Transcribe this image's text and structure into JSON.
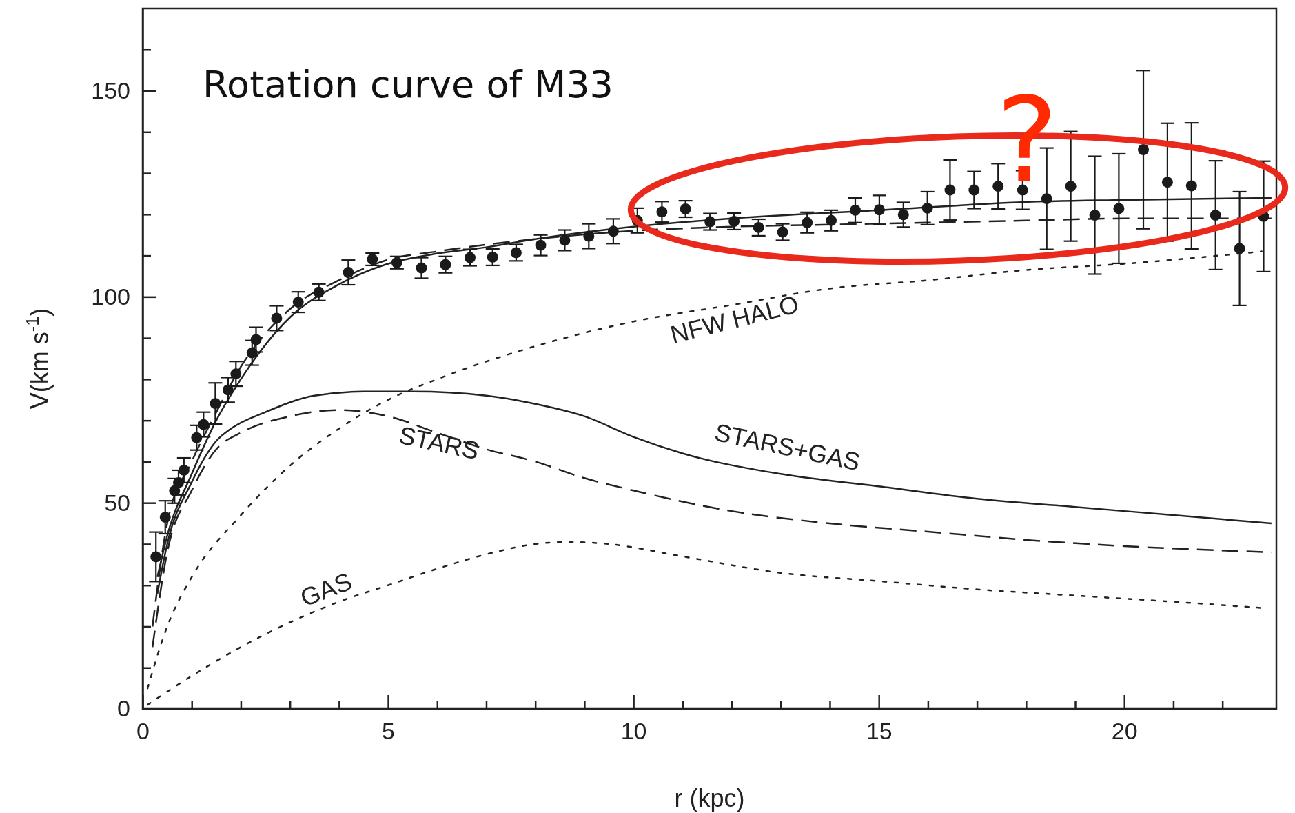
{
  "chart_data": {
    "type": "line",
    "title": "Rotation curve of M33",
    "xlabel": "r (kpc)",
    "ylabel": "V(km s$^{-1}$)",
    "xlim": [
      0,
      23.1
    ],
    "ylim": [
      0,
      170
    ],
    "xticks": [
      0,
      {
        "value": 1,
        "label": null
      },
      {
        "value": 2,
        "label": null
      },
      {
        "value": 3,
        "label": null
      },
      {
        "value": 4,
        "label": null
      },
      5,
      {
        "value": 6,
        "label": null
      },
      {
        "value": 7,
        "label": null
      },
      {
        "value": 8,
        "label": null
      },
      {
        "value": 9,
        "label": null
      },
      10,
      {
        "value": 11,
        "label": null
      },
      {
        "value": 12,
        "label": null
      },
      {
        "value": 13,
        "label": null
      },
      {
        "value": 14,
        "label": null
      },
      15,
      {
        "value": 16,
        "label": null
      },
      {
        "value": 17,
        "label": null
      },
      {
        "value": 18,
        "label": null
      },
      {
        "value": 19,
        "label": null
      },
      20,
      {
        "value": 21,
        "label": null
      },
      {
        "value": 22,
        "label": null
      }
    ],
    "yticks": [
      0,
      {
        "value": 10,
        "label": null
      },
      {
        "value": 20,
        "label": null
      },
      {
        "value": 30,
        "label": null
      },
      {
        "value": 40,
        "label": null
      },
      50,
      {
        "value": 60,
        "label": null
      },
      {
        "value": 70,
        "label": null
      },
      {
        "value": 80,
        "label": null
      },
      {
        "value": 90,
        "label": null
      },
      100,
      {
        "value": 110,
        "label": null
      },
      {
        "value": 120,
        "label": null
      },
      {
        "value": 130,
        "label": null
      },
      {
        "value": 140,
        "label": null
      },
      150,
      {
        "value": 160,
        "label": null
      }
    ],
    "annotations": [
      "?"
    ],
    "series": [
      {
        "type": "scatter",
        "marker": "circle",
        "color": "#1a1a1a",
        "x": [
          0.27,
          0.46,
          0.65,
          0.73,
          0.84,
          1.1,
          1.24,
          1.48,
          1.74,
          1.9,
          2.23,
          2.31,
          2.73,
          3.17,
          3.59,
          4.19,
          4.68,
          5.18,
          5.68,
          6.17,
          6.67,
          7.13,
          7.61,
          8.11,
          8.6,
          9.09,
          9.59,
          10.08,
          10.58,
          11.06,
          11.56,
          12.05,
          12.55,
          13.04,
          13.54,
          14.03,
          14.52,
          15.01,
          15.5,
          15.99,
          16.45,
          16.94,
          17.43,
          17.93,
          18.42,
          18.91,
          19.4,
          19.89,
          20.39,
          20.88,
          21.37,
          21.86,
          22.35,
          22.84
        ],
        "values": [
          36.9,
          46.5,
          52.9,
          54.9,
          57.9,
          65.8,
          69.0,
          74.1,
          77.4,
          81.3,
          86.4,
          89.6,
          94.8,
          98.7,
          101.1,
          105.9,
          109.1,
          108.3,
          107.0,
          107.8,
          109.5,
          109.6,
          110.7,
          112.5,
          113.7,
          114.7,
          115.9,
          118.5,
          120.6,
          121.3,
          118.2,
          118.3,
          116.8,
          115.7,
          118.0,
          118.5,
          121.0,
          121.1,
          119.9,
          121.5,
          125.9,
          125.9,
          126.8,
          125.9,
          123.8,
          126.8,
          119.8,
          121.4,
          135.7,
          127.8,
          126.9,
          119.8,
          111.7,
          119.5
        ],
        "errors": [
          6,
          4,
          3,
          3,
          3,
          3,
          3,
          5,
          3,
          3,
          3,
          3,
          3,
          2.5,
          2,
          3,
          1.5,
          1.5,
          2.5,
          2,
          2,
          2,
          2,
          2.5,
          2.5,
          3,
          3,
          3,
          2.5,
          2,
          2,
          2,
          2,
          2,
          2.5,
          2.5,
          3,
          3.5,
          3,
          4,
          7.3,
          4.5,
          5.5,
          4.7,
          12.3,
          13.3,
          14.3,
          13.3,
          19.2,
          14.3,
          15.3,
          13.2,
          13.8,
          13.4
        ]
      },
      {
        "line_style": "solid",
        "color": "#222222",
        "x": [
          0.3,
          0.5,
          1,
          1.5,
          2,
          3,
          4,
          5,
          6,
          7,
          8,
          10,
          12,
          15,
          18,
          20,
          23
        ],
        "values": [
          32,
          42,
          57,
          70,
          80,
          95,
          103,
          108,
          110.5,
          112,
          114,
          117,
          119,
          121,
          123,
          123.5,
          124
        ]
      },
      {
        "line_style": "dashed",
        "color": "#222222",
        "x": [
          0.2,
          0.5,
          1,
          1.5,
          2,
          3,
          4,
          5,
          6,
          8,
          10,
          12,
          14,
          16,
          18,
          20,
          23
        ],
        "values": [
          20,
          45,
          60,
          72,
          83,
          97,
          104,
          109,
          111,
          114,
          116,
          117,
          117.5,
          118,
          118.5,
          119,
          119
        ]
      },
      {
        "line_style": "solid",
        "color": "#222222",
        "name": "STARS+GAS",
        "x": [
          0.3,
          0.5,
          1,
          1.5,
          1.8,
          2.5,
          3.5,
          4.5,
          5.5,
          7,
          8,
          9,
          10,
          11,
          13,
          15,
          17,
          19,
          21,
          23
        ],
        "values": [
          28,
          40,
          55,
          65,
          68,
          72,
          76,
          77,
          77,
          76,
          74,
          71,
          66,
          62,
          57,
          54,
          51,
          49,
          47,
          45
        ]
      },
      {
        "line_style": "dashed",
        "color": "#222222",
        "name": "STARS",
        "x": [
          0.2,
          0.5,
          1,
          1.5,
          2,
          3,
          4,
          5,
          6,
          7,
          8,
          9,
          10,
          12,
          14,
          16,
          18,
          20,
          23
        ],
        "values": [
          15,
          38,
          53,
          63,
          67,
          71,
          72.5,
          71,
          67,
          63,
          60,
          56,
          53,
          48,
          45,
          43,
          41,
          39.5,
          38
        ]
      },
      {
        "line_style": "dotted",
        "color": "#222222",
        "name": "NFW HALO",
        "x": [
          0.1,
          0.5,
          1,
          2,
          3,
          4,
          5,
          6,
          8,
          10,
          12,
          14,
          16,
          18,
          20,
          22.8
        ],
        "values": [
          5,
          20,
          32,
          47,
          59,
          68,
          75,
          80,
          88,
          94,
          98,
          102,
          104,
          106.5,
          108,
          111
        ]
      },
      {
        "line_style": "dotted",
        "color": "#222222",
        "name": "GAS",
        "x": [
          0.1,
          1,
          2,
          3,
          4,
          5,
          6,
          7,
          8,
          8.7,
          9.5,
          11,
          13,
          15,
          17,
          19,
          21,
          22.8
        ],
        "values": [
          1,
          8,
          15,
          21,
          26,
          30,
          34,
          37.5,
          40,
          40.5,
          40,
          37,
          33,
          31,
          29,
          27.5,
          26,
          24.5
        ]
      }
    ]
  }
}
